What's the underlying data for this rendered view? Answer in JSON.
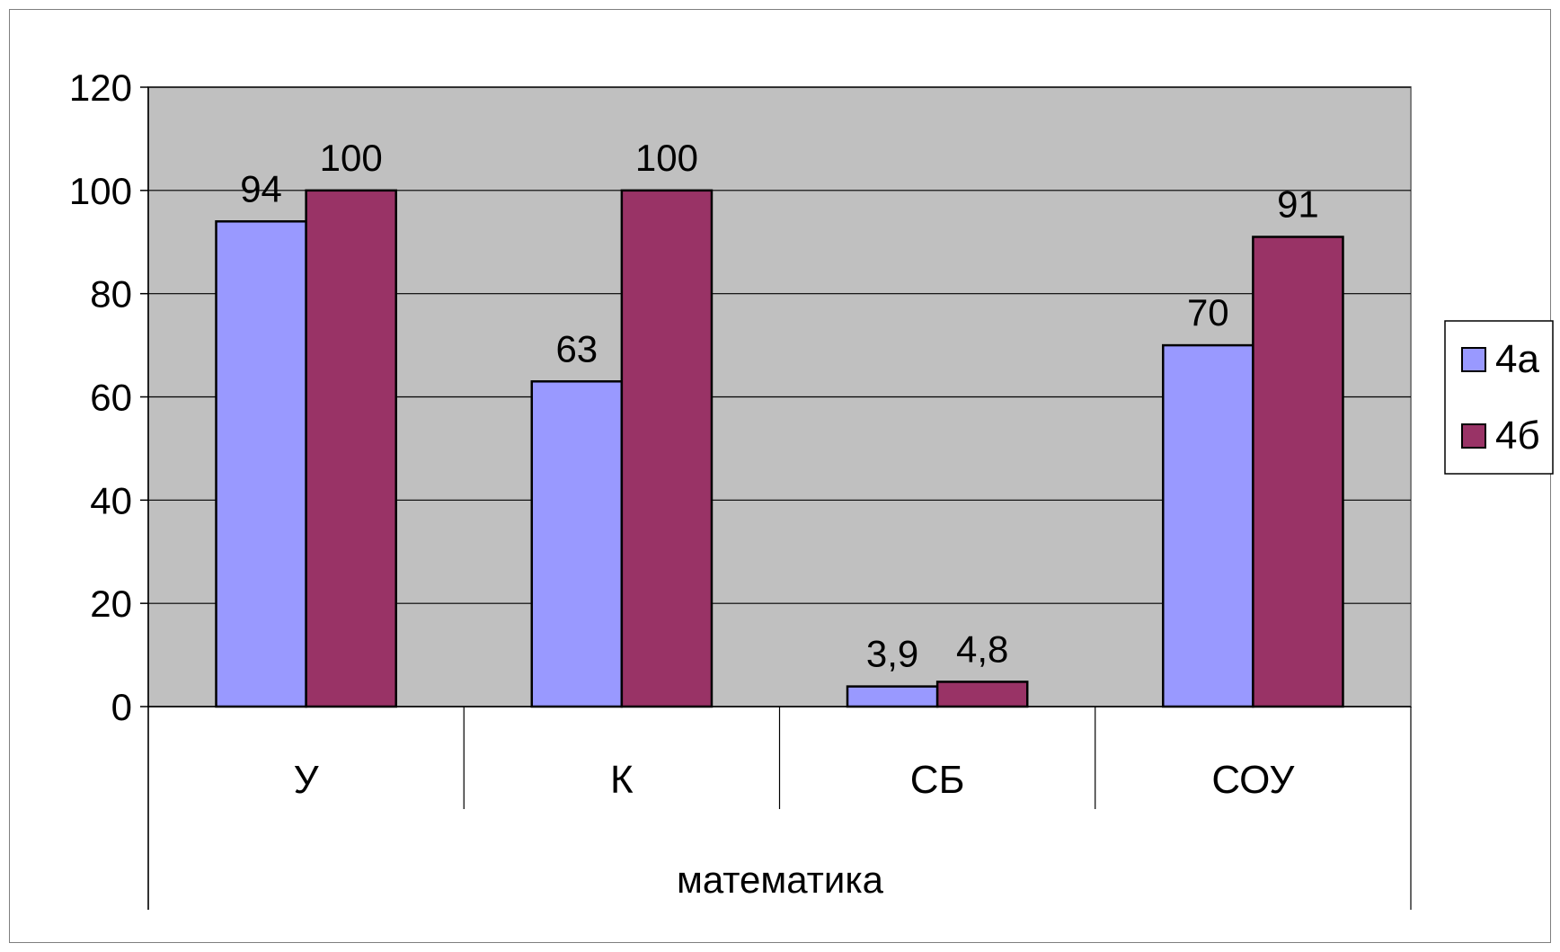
{
  "chart_data": {
    "type": "bar",
    "title": "",
    "xlabel": "",
    "ylabel": "",
    "ylim": [
      0,
      120
    ],
    "yticks": [
      "0",
      "20",
      "40",
      "60",
      "80",
      "100",
      "120"
    ],
    "grid": true,
    "legend_position": "right",
    "plot_background": "#c0c0c0",
    "categories": [
      "У",
      "К",
      "СБ",
      "СОУ"
    ],
    "group_label": "математика",
    "series": [
      {
        "name": "4а",
        "color": "#9999ff",
        "values": [
          94,
          63,
          3.9,
          70
        ],
        "labels": [
          "94",
          "63",
          "3,9",
          "70"
        ]
      },
      {
        "name": "4б",
        "color": "#993366",
        "values": [
          100,
          100,
          4.8,
          91
        ],
        "labels": [
          "100",
          "100",
          "4,8",
          "91"
        ]
      }
    ]
  }
}
